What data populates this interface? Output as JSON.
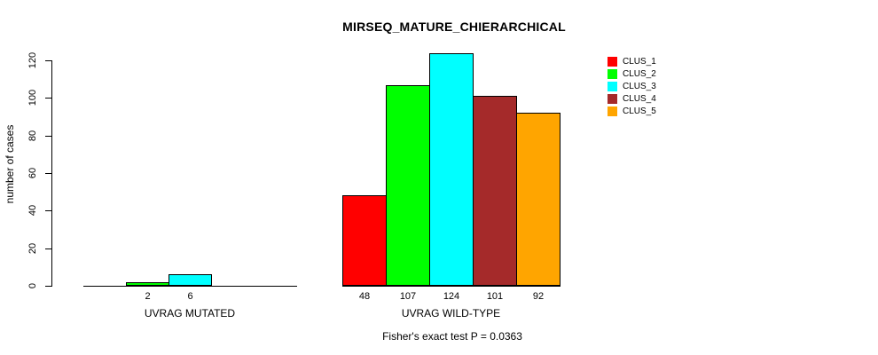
{
  "chart_data": {
    "type": "bar",
    "title": "MIRSEQ_MATURE_CHIERARCHICAL",
    "ylabel": "number of cases",
    "xlabel": "",
    "ylim": [
      0,
      124
    ],
    "yticks": [
      0,
      20,
      40,
      60,
      80,
      100,
      120
    ],
    "grid": false,
    "legend_position": "top-right",
    "series": [
      {
        "name": "CLUS_1",
        "color": "#FF0000"
      },
      {
        "name": "CLUS_2",
        "color": "#00FF00"
      },
      {
        "name": "CLUS_3",
        "color": "#00FFFF"
      },
      {
        "name": "CLUS_4",
        "color": "#A52A2A"
      },
      {
        "name": "CLUS_5",
        "color": "#FFA500"
      }
    ],
    "groups": [
      {
        "label": "UVRAG MUTATED",
        "values": [
          0,
          2,
          6,
          0,
          0
        ],
        "bar_labels": [
          "",
          "2",
          "6",
          "",
          ""
        ]
      },
      {
        "label": "UVRAG WILD-TYPE",
        "values": [
          48,
          107,
          124,
          101,
          92
        ],
        "bar_labels": [
          "48",
          "107",
          "124",
          "101",
          "92"
        ]
      }
    ],
    "footnote": "Fisher's exact test P = 0.0363",
    "axis_color": "#000000",
    "bar_border_color": "#000000"
  }
}
